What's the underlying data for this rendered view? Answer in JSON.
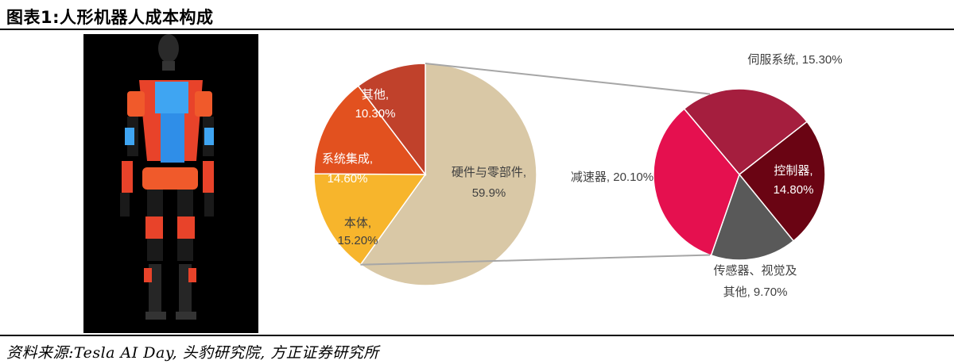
{
  "figure_title": "图表1:人形机器人成本构成",
  "source_note": "资料来源:Tesla AI Day, 头豹研究院, 方正证券研究所",
  "colors": {
    "hardware": "#d9c8a6",
    "body": "#f7b52c",
    "system_integration": "#e2511f",
    "other": "#c0412b",
    "reducer": "#e5104f",
    "servo": "#a51e3e",
    "controller": "#6a0413",
    "sensor": "#595959",
    "connector": "#a6a6a6"
  },
  "chart_data": [
    {
      "type": "pie",
      "title": "",
      "slices": [
        {
          "name": "硬件与零部件",
          "label_line1": "硬件与零部件,",
          "label_line2": "59.9%",
          "value": 59.9
        },
        {
          "name": "本体",
          "label_line1": "本体,",
          "label_line2": "15.20%",
          "value": 15.2
        },
        {
          "name": "系统集成",
          "label_line1": "系统集成,",
          "label_line2": "14.60%",
          "value": 14.6
        },
        {
          "name": "其他",
          "label_line1": "其他,",
          "label_line2": "10.30%",
          "value": 10.3
        }
      ]
    },
    {
      "type": "pie",
      "title": "",
      "slices": [
        {
          "name": "伺服系统",
          "label_line1": "伺服系统, 15.30%",
          "label_line2": "",
          "value": 15.3
        },
        {
          "name": "控制器",
          "label_line1": "控制器,",
          "label_line2": "14.80%",
          "value": 14.8
        },
        {
          "name": "传感器、视觉及其他",
          "label_line1": "传感器、视觉及",
          "label_line2": "其他, 9.70%",
          "value": 9.7
        },
        {
          "name": "减速器",
          "label_line1": "减速器, 20.10%",
          "label_line2": "",
          "value": 20.1
        }
      ]
    }
  ]
}
